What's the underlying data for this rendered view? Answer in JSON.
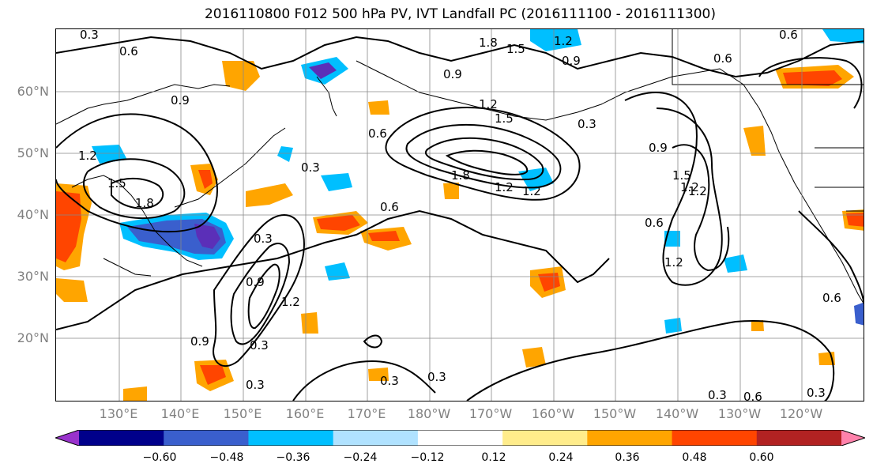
{
  "title": "2016110800 F012 500 hPa PV, IVT Landfall PC (2016111100 - 2016111300)",
  "lat_labels": [
    "60°N",
    "50°N",
    "40°N",
    "30°N",
    "20°N"
  ],
  "lon_labels": [
    "130°E",
    "140°E",
    "150°E",
    "160°E",
    "170°E",
    "180°W",
    "170°W",
    "160°W",
    "150°W",
    "140°W",
    "130°W",
    "120°W"
  ],
  "colorbar": {
    "colors": [
      "#9932cc",
      "#00008b",
      "#3a5fcd",
      "#00bfff",
      "#b0e2ff",
      "#ffffff",
      "#ffec8b",
      "#ffa500",
      "#ff4500",
      "#b22222",
      "#ff82ab"
    ],
    "ticks": [
      "−0.60",
      "−0.48",
      "−0.36",
      "−0.24",
      "−0.12",
      "0.12",
      "0.24",
      "0.36",
      "0.48",
      "0.60"
    ]
  },
  "contour_labels": [
    "0.3",
    "0.6",
    "0.9",
    "1.2",
    "1.5",
    "1.8",
    "0.6",
    "0.9",
    "1.2",
    "1.5",
    "1.8",
    "0.6",
    "0.3",
    "0.6",
    "0.9",
    "1.2",
    "0.3",
    "0.3",
    "0.9",
    "1.2",
    "0.3",
    "0.3",
    "0.3",
    "0.6",
    "1.2",
    "1.5",
    "1.2",
    "0.9",
    "0.3",
    "0.6",
    "1.2",
    "0.6",
    "0.3",
    "0.3",
    "1.8",
    "1.2",
    "1.5",
    "1.2",
    "0.6",
    "0.9"
  ]
}
